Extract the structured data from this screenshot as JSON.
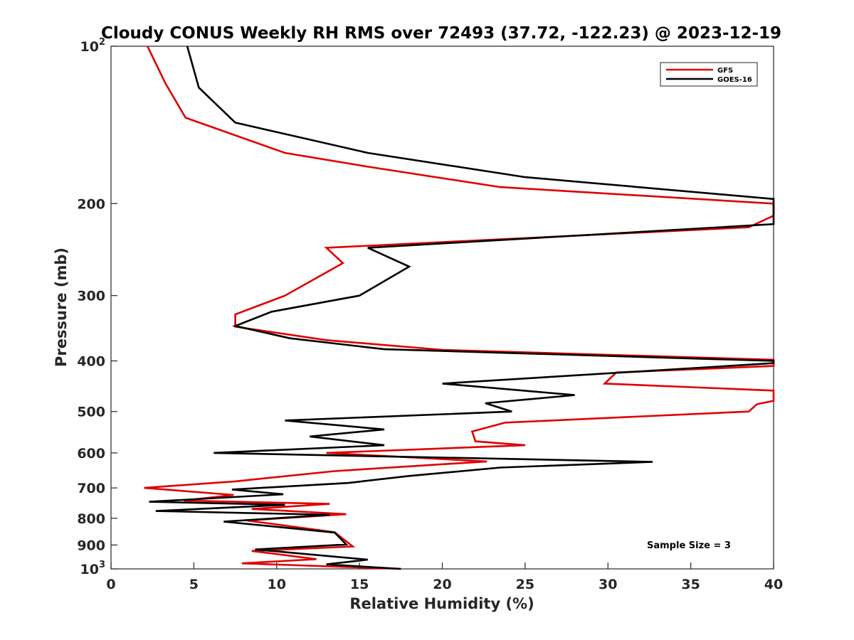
{
  "chart_data": {
    "type": "line",
    "title": "Cloudy CONUS Weekly RH RMS over 72493 (37.72, -122.23) @ 2023-12-19",
    "xlabel": "Relative Humidity (%)",
    "ylabel": "Pressure (mb)",
    "xlim": [
      0,
      40
    ],
    "ylim": [
      100,
      1000
    ],
    "y_scale": "log",
    "y_reversed": true,
    "xticks": [
      0,
      5,
      10,
      15,
      20,
      25,
      30,
      35,
      40
    ],
    "xtick_labels": [
      "0",
      "5",
      "10",
      "15",
      "20",
      "25",
      "30",
      "35",
      "40"
    ],
    "yticks": [
      100,
      200,
      300,
      400,
      500,
      600,
      700,
      800,
      900,
      1000
    ],
    "ytick_labels": [
      {
        "base": "10",
        "exp": "2"
      },
      {
        "base": "200",
        "exp": ""
      },
      {
        "base": "300",
        "exp": ""
      },
      {
        "base": "400",
        "exp": ""
      },
      {
        "base": "500",
        "exp": ""
      },
      {
        "base": "600",
        "exp": ""
      },
      {
        "base": "700",
        "exp": ""
      },
      {
        "base": "800",
        "exp": ""
      },
      {
        "base": "900",
        "exp": ""
      },
      {
        "base": "10",
        "exp": "3"
      }
    ],
    "grid": false,
    "legend_position": "top-right",
    "annotation": "Sample Size = 3",
    "series": [
      {
        "name": "GFS",
        "color": "#e00000",
        "points": [
          [
            2.2,
            100
          ],
          [
            3.3,
            118
          ],
          [
            4.5,
            137
          ],
          [
            10.5,
            160
          ],
          [
            15.5,
            170
          ],
          [
            23.5,
            186
          ],
          [
            40,
            200
          ],
          [
            40,
            211
          ],
          [
            38.5,
            222
          ],
          [
            13.0,
            243
          ],
          [
            14.0,
            260
          ],
          [
            10.5,
            300
          ],
          [
            7.5,
            326
          ],
          [
            7.5,
            344
          ],
          [
            13.0,
            365
          ],
          [
            20.0,
            381
          ],
          [
            40,
            398
          ],
          [
            40,
            409
          ],
          [
            30.5,
            421
          ],
          [
            29.8,
            442
          ],
          [
            40,
            456
          ],
          [
            40,
            477
          ],
          [
            39.0,
            484
          ],
          [
            38.5,
            500
          ],
          [
            23.8,
            525
          ],
          [
            21.8,
            546
          ],
          [
            22.0,
            570
          ],
          [
            25.0,
            580
          ],
          [
            13.0,
            600
          ],
          [
            22.7,
            623
          ],
          [
            13.5,
            650
          ],
          [
            7.5,
            680
          ],
          [
            2.0,
            700
          ],
          [
            7.4,
            722
          ],
          [
            4.4,
            740
          ],
          [
            13.2,
            751
          ],
          [
            8.5,
            768
          ],
          [
            14.2,
            786
          ],
          [
            8.2,
            808
          ],
          [
            13.5,
            851
          ],
          [
            14.6,
            906
          ],
          [
            8.5,
            924
          ],
          [
            12.4,
            958
          ],
          [
            7.9,
            976
          ],
          [
            17.5,
            1000
          ]
        ]
      },
      {
        "name": "GOES-16",
        "color": "#000000",
        "points": [
          [
            4.6,
            100
          ],
          [
            5.3,
            120
          ],
          [
            7.5,
            140
          ],
          [
            15.5,
            160
          ],
          [
            25.0,
            178
          ],
          [
            40,
            196
          ],
          [
            40,
            219
          ],
          [
            15.5,
            243
          ],
          [
            18.0,
            264
          ],
          [
            15.0,
            300
          ],
          [
            9.7,
            322
          ],
          [
            7.5,
            343
          ],
          [
            10.8,
            362
          ],
          [
            16.5,
            380
          ],
          [
            40,
            400
          ],
          [
            40,
            404
          ],
          [
            20.0,
            442
          ],
          [
            28.0,
            465
          ],
          [
            22.6,
            482
          ],
          [
            24.2,
            500
          ],
          [
            10.5,
            520
          ],
          [
            16.5,
            541
          ],
          [
            12.0,
            558
          ],
          [
            16.5,
            580
          ],
          [
            6.2,
            600
          ],
          [
            32.7,
            624
          ],
          [
            23.5,
            640
          ],
          [
            18.0,
            664
          ],
          [
            14.3,
            685
          ],
          [
            7.3,
            705
          ],
          [
            10.4,
            720
          ],
          [
            2.3,
            744
          ],
          [
            10.5,
            754
          ],
          [
            2.7,
            775
          ],
          [
            13.2,
            788
          ],
          [
            6.8,
            812
          ],
          [
            13.5,
            852
          ],
          [
            14.2,
            898
          ],
          [
            8.7,
            918
          ],
          [
            15.5,
            960
          ],
          [
            13.0,
            980
          ],
          [
            17.5,
            1000
          ]
        ]
      }
    ]
  }
}
